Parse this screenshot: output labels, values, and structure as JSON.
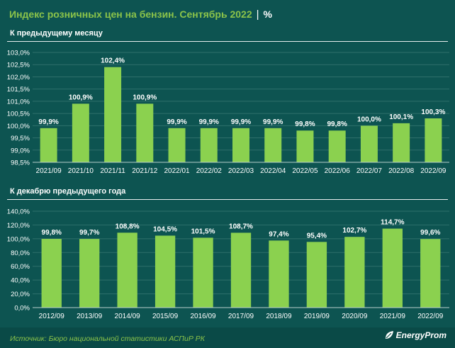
{
  "header": {
    "title": "Индекс розничных цен на бензин. Сентябрь 2022",
    "separator": "|",
    "unit": "%"
  },
  "footer": {
    "source": "Источник: Бюро национальной статистики АСПиР РК",
    "logo_text": "EnergyProm",
    "logo_icon": "leaf-icon"
  },
  "colors": {
    "background": "#0d5451",
    "bar": "#8bd14f",
    "title": "#8bc34a",
    "text": "#ffffff"
  },
  "chart_data": [
    {
      "type": "bar",
      "title": "К предыдущему месяцу",
      "categories": [
        "2021/09",
        "2021/10",
        "2021/11",
        "2021/12",
        "2022/01",
        "2022/02",
        "2022/03",
        "2022/04",
        "2022/05",
        "2022/06",
        "2022/07",
        "2022/08",
        "2022/09"
      ],
      "values": [
        99.9,
        100.9,
        102.4,
        100.9,
        99.9,
        99.9,
        99.9,
        99.9,
        99.8,
        99.8,
        100.0,
        100.1,
        100.3
      ],
      "data_labels": [
        "99,9%",
        "100,9%",
        "102,4%",
        "100,9%",
        "99,9%",
        "99,9%",
        "99,9%",
        "99,9%",
        "99,8%",
        "99,8%",
        "100,0%",
        "100,1%",
        "100,3%"
      ],
      "ylim": [
        98.5,
        103.0
      ],
      "yticks": [
        98.5,
        99.0,
        99.5,
        100.0,
        100.5,
        101.0,
        101.5,
        102.0,
        102.5,
        103.0
      ],
      "ytick_labels": [
        "98,5%",
        "99,0%",
        "99,5%",
        "100,0%",
        "100,5%",
        "101,0%",
        "101,5%",
        "102,0%",
        "102,5%",
        "103,0%"
      ],
      "grid": true
    },
    {
      "type": "bar",
      "title": "К декабрю предыдущего года",
      "categories": [
        "2012/09",
        "2013/09",
        "2014/09",
        "2015/09",
        "2016/09",
        "2017/09",
        "2018/09",
        "2019/09",
        "2020/09",
        "2021/09",
        "2022/09"
      ],
      "values": [
        99.8,
        99.7,
        108.8,
        104.5,
        101.5,
        108.7,
        97.4,
        95.4,
        102.7,
        114.7,
        99.6
      ],
      "data_labels": [
        "99,8%",
        "99,7%",
        "108,8%",
        "104,5%",
        "101,5%",
        "108,7%",
        "97,4%",
        "95,4%",
        "102,7%",
        "114,7%",
        "99,6%"
      ],
      "ylim": [
        0,
        140
      ],
      "yticks": [
        0,
        20,
        40,
        60,
        80,
        100,
        120,
        140
      ],
      "ytick_labels": [
        "0,0%",
        "20,0%",
        "40,0%",
        "60,0%",
        "80,0%",
        "100,0%",
        "120,0%",
        "140,0%"
      ],
      "grid": true
    }
  ]
}
